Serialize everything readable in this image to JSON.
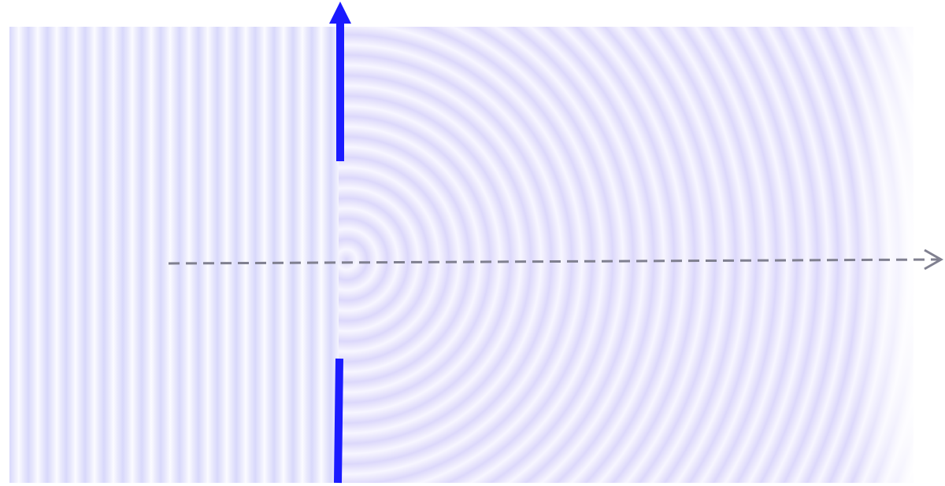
{
  "colors": {
    "barrier": "#1a1aff",
    "axis": "#808090",
    "wave_dark": "#d8d8fb",
    "wave_light": "#fbfbff"
  },
  "icons": {
    "barrier_arrow": "arrow-up-icon",
    "axis_arrow": "arrow-right-icon"
  }
}
